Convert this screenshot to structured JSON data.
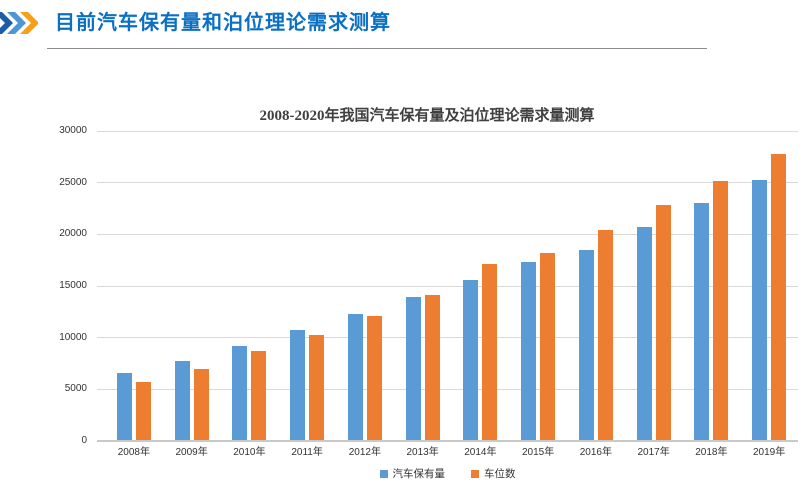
{
  "header": {
    "title": "目前汽车保有量和泊位理论需求测算"
  },
  "colors": {
    "header_title": "#0A70C4",
    "chevron_dark_blue": "#1A5DA8",
    "chevron_light_blue": "#4E96D6",
    "chevron_orange": "#F79E1B",
    "series_blue": "#5B9BD5",
    "series_orange": "#ED7D31",
    "gridline": "#D9D9D9",
    "axis_line": "#C9C9C9",
    "axis_text": "#333333",
    "chart_title_text": "#404040"
  },
  "chart_data": {
    "type": "bar",
    "title": "2008-2020年我国汽车保有量及泊位理论需求量测算",
    "categories": [
      "2008年",
      "2009年",
      "2010年",
      "2011年",
      "2012年",
      "2013年",
      "2014年",
      "2015年",
      "2016年",
      "2017年",
      "2018年",
      "2019年"
    ],
    "series": [
      {
        "name": "汽车保有量",
        "color": "#5B9BD5",
        "values": [
          6450,
          7600,
          9100,
          10650,
          12150,
          13800,
          15450,
          17250,
          18400,
          20600,
          22900,
          25200
        ]
      },
      {
        "name": "车位数",
        "color": "#ED7D31",
        "values": [
          5600,
          6850,
          8650,
          10200,
          12000,
          14000,
          17000,
          18100,
          20300,
          22700,
          25100,
          27700
        ]
      }
    ],
    "xlabel": "",
    "ylabel": "",
    "ylim": [
      0,
      30000
    ],
    "yticks": [
      0,
      5000,
      10000,
      15000,
      20000,
      25000,
      30000
    ],
    "grid": true,
    "legend_position": "bottom"
  }
}
